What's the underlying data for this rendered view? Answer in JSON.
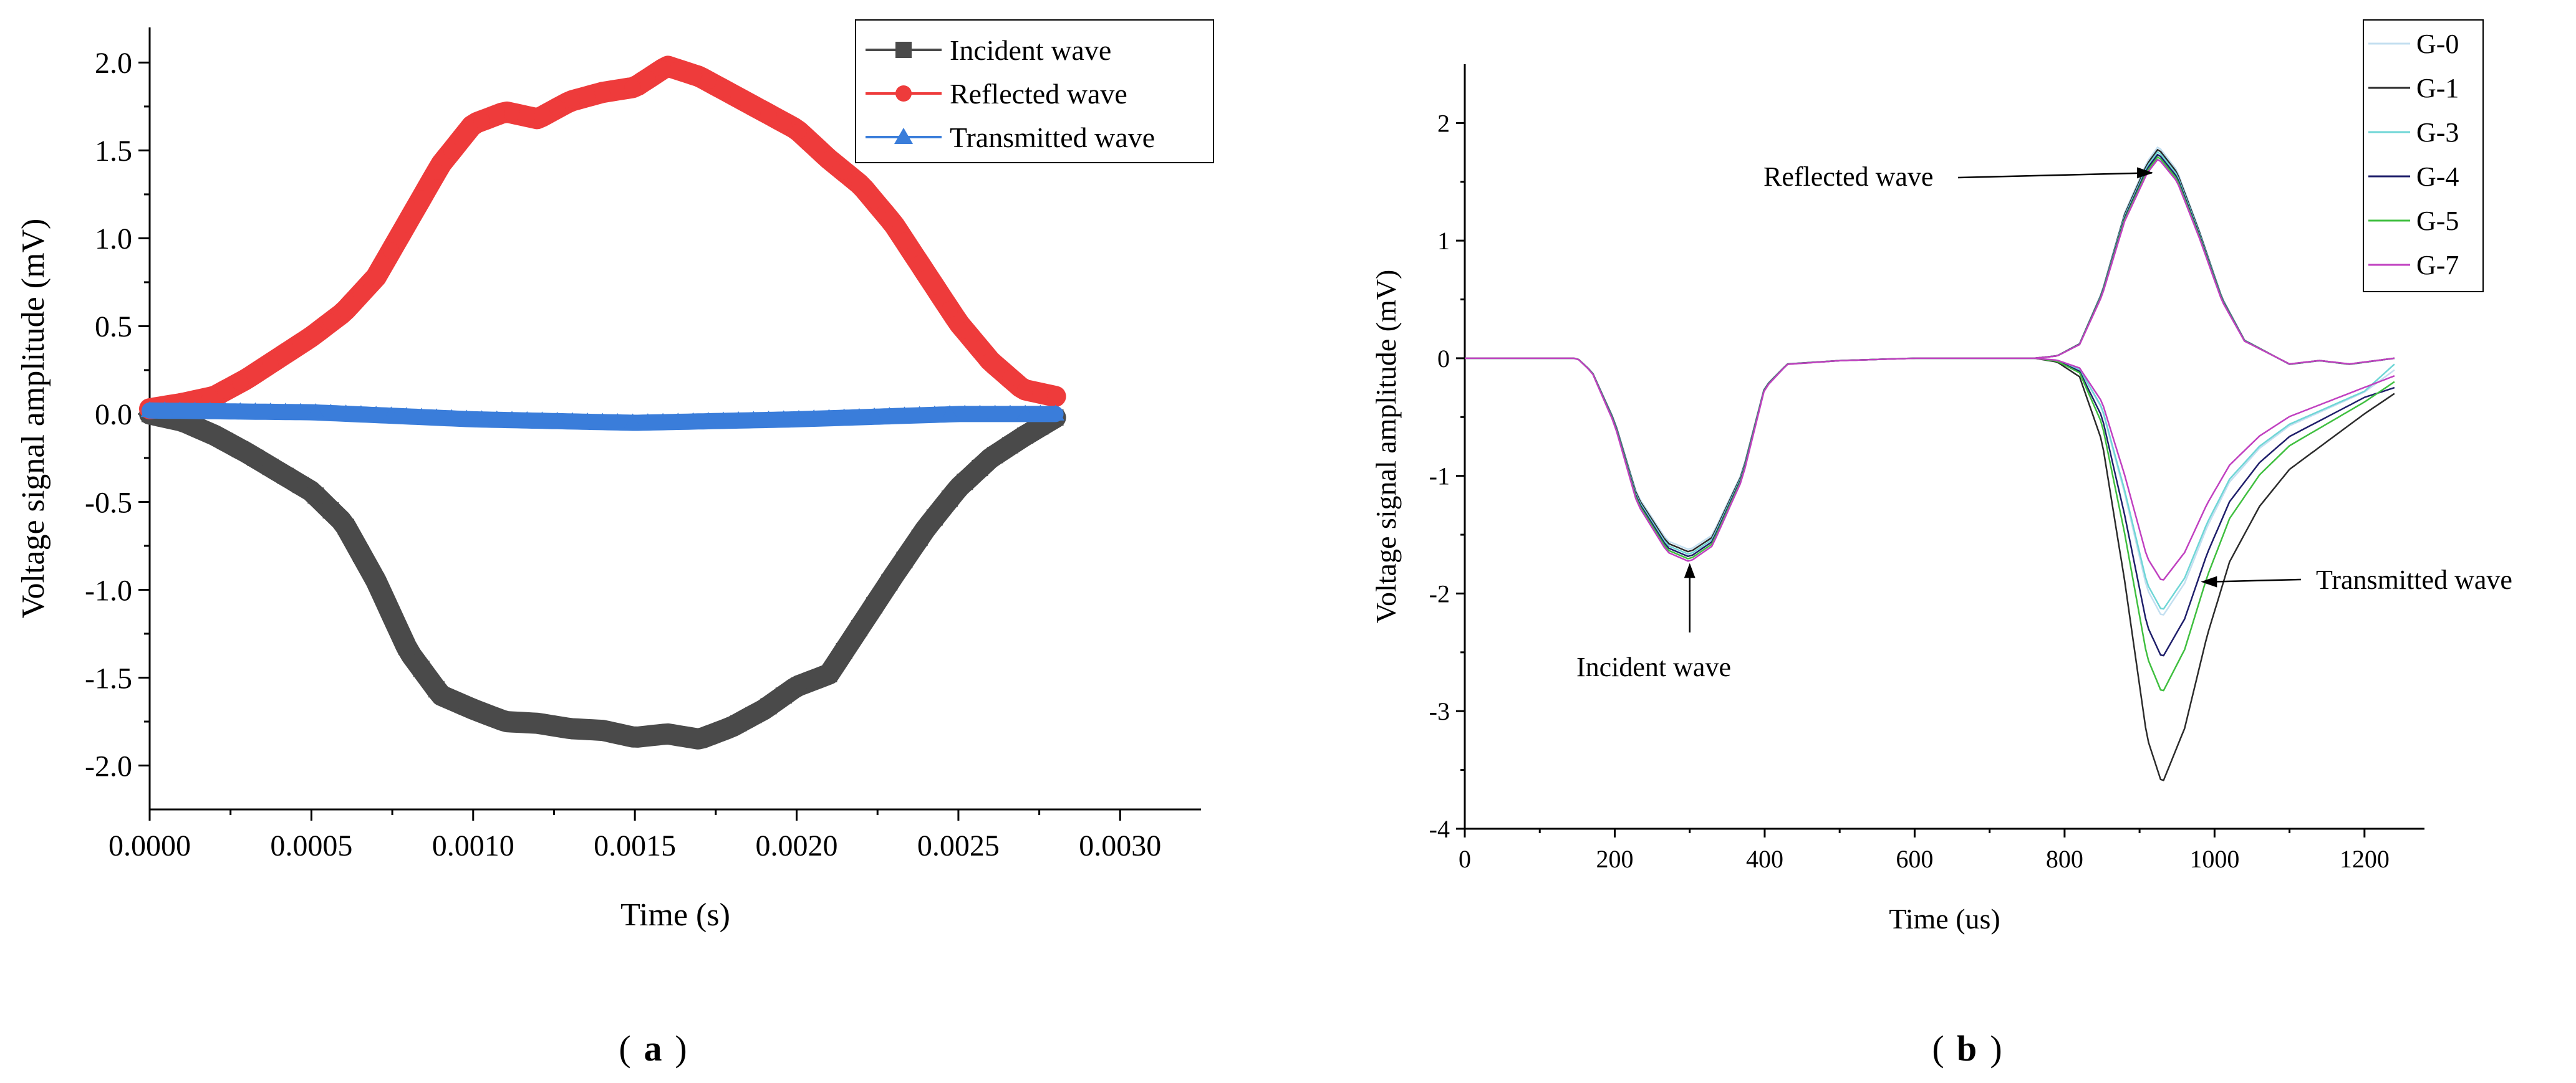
{
  "figure": {
    "panel_a_label": "a",
    "panel_b_label": "b"
  },
  "chart_data": [
    {
      "id": "a",
      "type": "line",
      "xlabel": "Time (s)",
      "ylabel": "Voltage signal amplitude (mV)",
      "xlim": [
        0,
        0.00325
      ],
      "ylim": [
        -2.25,
        2.2
      ],
      "xticks": [
        0,
        0.0005,
        0.001,
        0.0015,
        0.002,
        0.0025,
        0.003
      ],
      "xtick_labels": [
        "0.0000",
        "0.0005",
        "0.0010",
        "0.0015",
        "0.0020",
        "0.0025",
        "0.0030"
      ],
      "yticks": [
        -2.0,
        -1.5,
        -1.0,
        -0.5,
        0.0,
        0.5,
        1.0,
        1.5,
        2.0
      ],
      "ytick_labels": [
        "-2.0",
        "-1.5",
        "-1.0",
        "-0.5",
        "0.0",
        "0.5",
        "1.0",
        "1.5",
        "2.0"
      ],
      "legend_position": "top-right",
      "series": [
        {
          "name": "Incident wave",
          "color": "#4a4a4a",
          "marker": "square",
          "x": [
            0,
            0.0001,
            0.0002,
            0.0003,
            0.0004,
            0.0005,
            0.0006,
            0.0007,
            0.0008,
            0.0009,
            0.001,
            0.0011,
            0.0012,
            0.0013,
            0.0014,
            0.0015,
            0.0016,
            0.0017,
            0.0018,
            0.0019,
            0.002,
            0.0021,
            0.0022,
            0.0023,
            0.0024,
            0.0025,
            0.0026,
            0.0027,
            0.0028
          ],
          "y": [
            0,
            -0.04,
            -0.12,
            -0.22,
            -0.33,
            -0.44,
            -0.62,
            -0.95,
            -1.35,
            -1.6,
            -1.68,
            -1.75,
            -1.76,
            -1.79,
            -1.8,
            -1.84,
            -1.82,
            -1.85,
            -1.78,
            -1.68,
            -1.55,
            -1.48,
            -1.2,
            -0.92,
            -0.65,
            -0.42,
            -0.25,
            -0.13,
            -0.02
          ]
        },
        {
          "name": "Reflected wave",
          "color": "#ee3b3b",
          "marker": "circle",
          "x": [
            0,
            0.0001,
            0.0002,
            0.0003,
            0.0004,
            0.0005,
            0.0006,
            0.0007,
            0.0008,
            0.0009,
            0.001,
            0.0011,
            0.0012,
            0.0013,
            0.0014,
            0.0015,
            0.0016,
            0.0017,
            0.0018,
            0.0019,
            0.002,
            0.0021,
            0.0022,
            0.0023,
            0.0024,
            0.0025,
            0.0026,
            0.0027,
            0.0028
          ],
          "y": [
            0.03,
            0.06,
            0.1,
            0.2,
            0.32,
            0.44,
            0.58,
            0.78,
            1.1,
            1.42,
            1.65,
            1.72,
            1.68,
            1.78,
            1.83,
            1.86,
            1.98,
            1.92,
            1.82,
            1.72,
            1.62,
            1.45,
            1.3,
            1.08,
            0.8,
            0.52,
            0.3,
            0.14,
            0.1
          ]
        },
        {
          "name": "Transmitted wave",
          "color": "#3a7dda",
          "marker": "triangle",
          "x": [
            0,
            0.0005,
            0.001,
            0.0015,
            0.002,
            0.0025,
            0.0028
          ],
          "y": [
            0.02,
            0.01,
            -0.03,
            -0.05,
            -0.03,
            0.0,
            0.0
          ]
        }
      ]
    },
    {
      "id": "b",
      "type": "line",
      "xlabel": "Time (us)",
      "ylabel": "Voltage signal amplitude (mV)",
      "xlim": [
        0,
        1280
      ],
      "ylim": [
        -4,
        2.5
      ],
      "xticks": [
        0,
        200,
        400,
        600,
        800,
        1000,
        1200
      ],
      "xtick_labels": [
        "0",
        "200",
        "400",
        "600",
        "800",
        "1000",
        "1200"
      ],
      "yticks": [
        -4,
        -3,
        -2,
        -1,
        0,
        1,
        2
      ],
      "ytick_labels": [
        "-4",
        "-3",
        "-2",
        "-1",
        "0",
        "1",
        "2"
      ],
      "legend_position": "top-right",
      "annotations": [
        {
          "text": "Reflected wave",
          "target_x": 900,
          "target_y": 1.55
        },
        {
          "text": "Incident wave",
          "target_x": 300,
          "target_y": -1.72
        },
        {
          "text": "Transmitted wave",
          "target_x": 980,
          "target_y": -1.9
        }
      ],
      "shared_incident_x": [
        0,
        150,
        170,
        200,
        230,
        270,
        300,
        330,
        370,
        400,
        430,
        500,
        600,
        760
      ],
      "shared_incident_y": [
        0,
        0,
        -0.12,
        -0.55,
        -1.2,
        -1.6,
        -1.68,
        -1.55,
        -1.0,
        -0.25,
        -0.05,
        -0.02,
        0,
        0
      ],
      "reflected_x": [
        760,
        790,
        820,
        850,
        880,
        910,
        925,
        950,
        980,
        1010,
        1040,
        1070,
        1100,
        1140,
        1180,
        1240
      ],
      "reflected_y": [
        0,
        0.02,
        0.12,
        0.55,
        1.2,
        1.62,
        1.75,
        1.55,
        1.05,
        0.5,
        0.15,
        0.05,
        -0.05,
        -0.02,
        -0.05,
        0
      ],
      "transmitted_x": [
        760,
        790,
        820,
        850,
        880,
        910,
        930,
        960,
        990,
        1020,
        1060,
        1100,
        1150,
        1200,
        1240
      ],
      "transmitted_profile": [
        0,
        -0.02,
        -0.1,
        -0.45,
        -1.2,
        -2.05,
        -2.3,
        -2.0,
        -1.5,
        -1.1,
        -0.8,
        -0.6,
        -0.45,
        -0.3,
        -0.2
      ],
      "series": [
        {
          "name": "G-0",
          "color": "#c3dff0",
          "transmitted_peak": -2.2,
          "transmitted_end": -0.1
        },
        {
          "name": "G-1",
          "color": "#2b2b2b",
          "transmitted_peak": -3.62,
          "transmitted_end": -0.3
        },
        {
          "name": "G-3",
          "color": "#6fd6d6",
          "transmitted_peak": -2.15,
          "transmitted_end": -0.05
        },
        {
          "name": "G-4",
          "color": "#1e1e6a",
          "transmitted_peak": -2.55,
          "transmitted_end": -0.25
        },
        {
          "name": "G-5",
          "color": "#3fbf3f",
          "transmitted_peak": -2.85,
          "transmitted_end": -0.2
        },
        {
          "name": "G-7",
          "color": "#c040c0",
          "transmitted_peak": -1.9,
          "transmitted_end": -0.15
        }
      ]
    }
  ]
}
